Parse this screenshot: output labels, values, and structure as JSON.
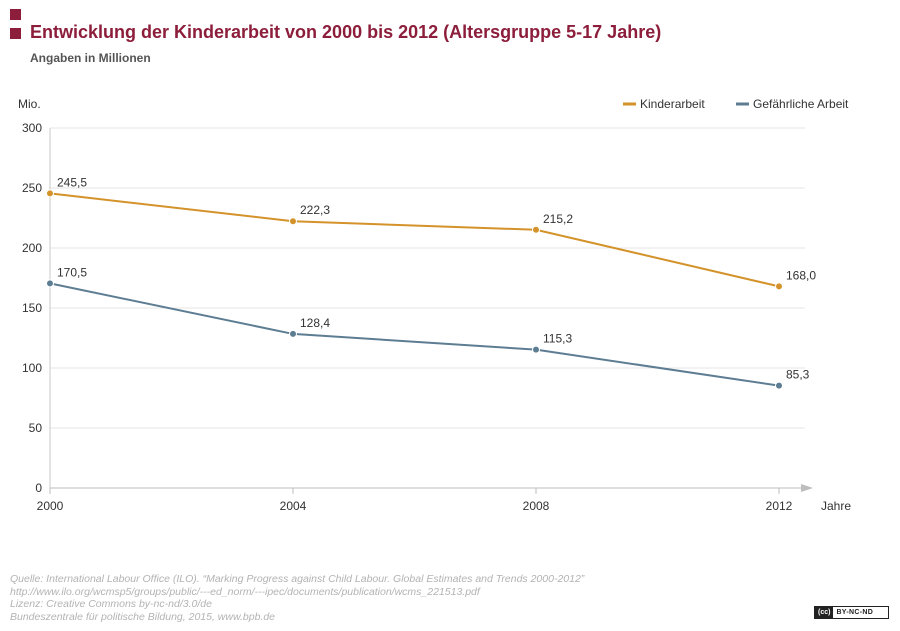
{
  "header": {
    "title": "Entwicklung der Kinderarbeit von 2000 bis 2012  (Altersgruppe 5-17 Jahre)",
    "subtitle": "Angaben in Millionen"
  },
  "chart_data": {
    "type": "line",
    "title": "Entwicklung der Kinderarbeit von 2000 bis 2012  (Altersgruppe 5-17 Jahre)",
    "subtitle": "Angaben in Millionen",
    "ylabel": "Mio.",
    "xlabel": "Jahre",
    "x": [
      "2000",
      "2004",
      "2008",
      "2012"
    ],
    "ylim": [
      0,
      300
    ],
    "yticks": [
      0,
      50,
      100,
      150,
      200,
      250,
      300
    ],
    "grid": true,
    "legend_position": "top-right",
    "series": [
      {
        "name": "Kinderarbeit",
        "color": "#d4922a",
        "values": [
          245.5,
          222.3,
          215.2,
          168.0
        ],
        "labels": [
          "245,5",
          "222,3",
          "215,2",
          "168,0"
        ]
      },
      {
        "name": "Gefährliche Arbeit",
        "color": "#5d7d93",
        "values": [
          170.5,
          128.4,
          115.3,
          85.3
        ],
        "labels": [
          "170,5",
          "128,4",
          "115,3",
          "85,3"
        ]
      }
    ]
  },
  "footer": {
    "source": "Quelle: International Labour Office (ILO). “Marking Progress against Child Labour. Global Estimates and Trends 2000-2012”",
    "url": "http://www.ilo.org/wcmsp5/groups/public/---ed_norm/---ipec/documents/publication/wcms_221513.pdf",
    "license": "Lizenz: Creative Commons by-nc-nd/3.0/de",
    "publisher": "Bundeszentrale für politische Bildung, 2015, www.bpb.de"
  },
  "badge": {
    "cc": "(cc)",
    "license": "BY-NC-ND"
  }
}
